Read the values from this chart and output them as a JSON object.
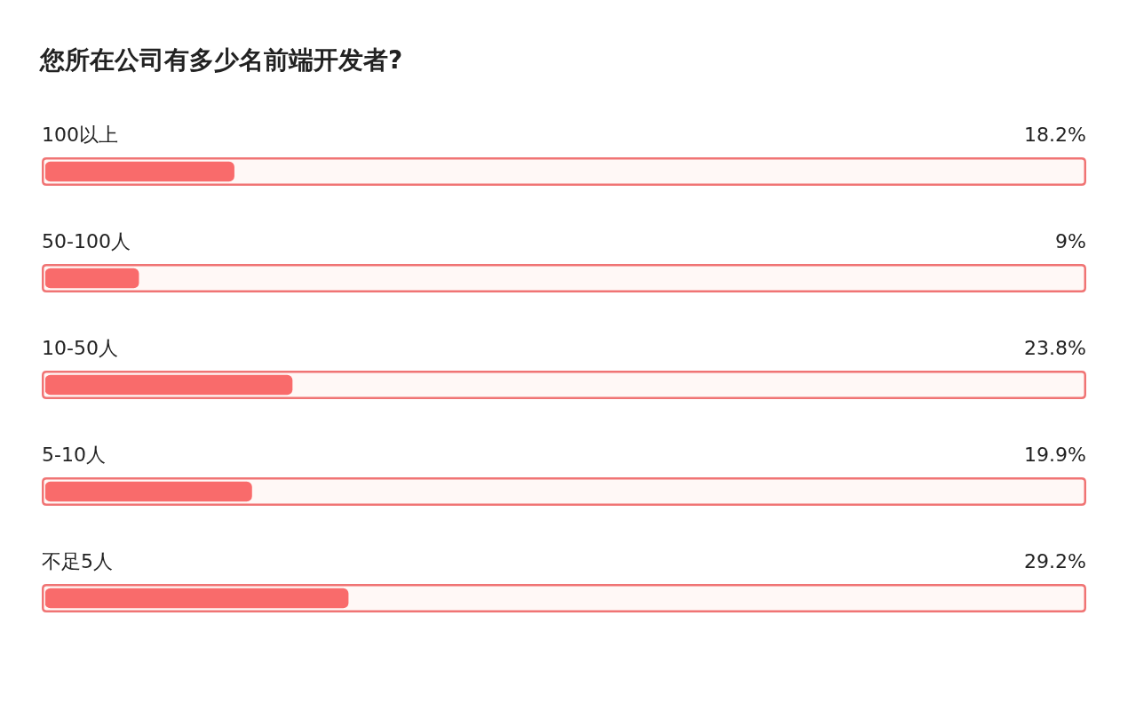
{
  "chart_data": {
    "type": "bar",
    "orientation": "horizontal",
    "title": "您所在公司有多少名前端开发者?",
    "categories": [
      "100以上",
      "50-100人",
      "10-50人",
      "5-10人",
      "不足5人"
    ],
    "values": [
      18.2,
      9,
      23.8,
      19.9,
      29.2
    ],
    "value_labels": [
      "18.2%",
      "9%",
      "23.8%",
      "19.9%",
      "29.2%"
    ],
    "color": "#f96b6b",
    "xlim": [
      0,
      100
    ],
    "grid": false,
    "tick_labels": false
  }
}
